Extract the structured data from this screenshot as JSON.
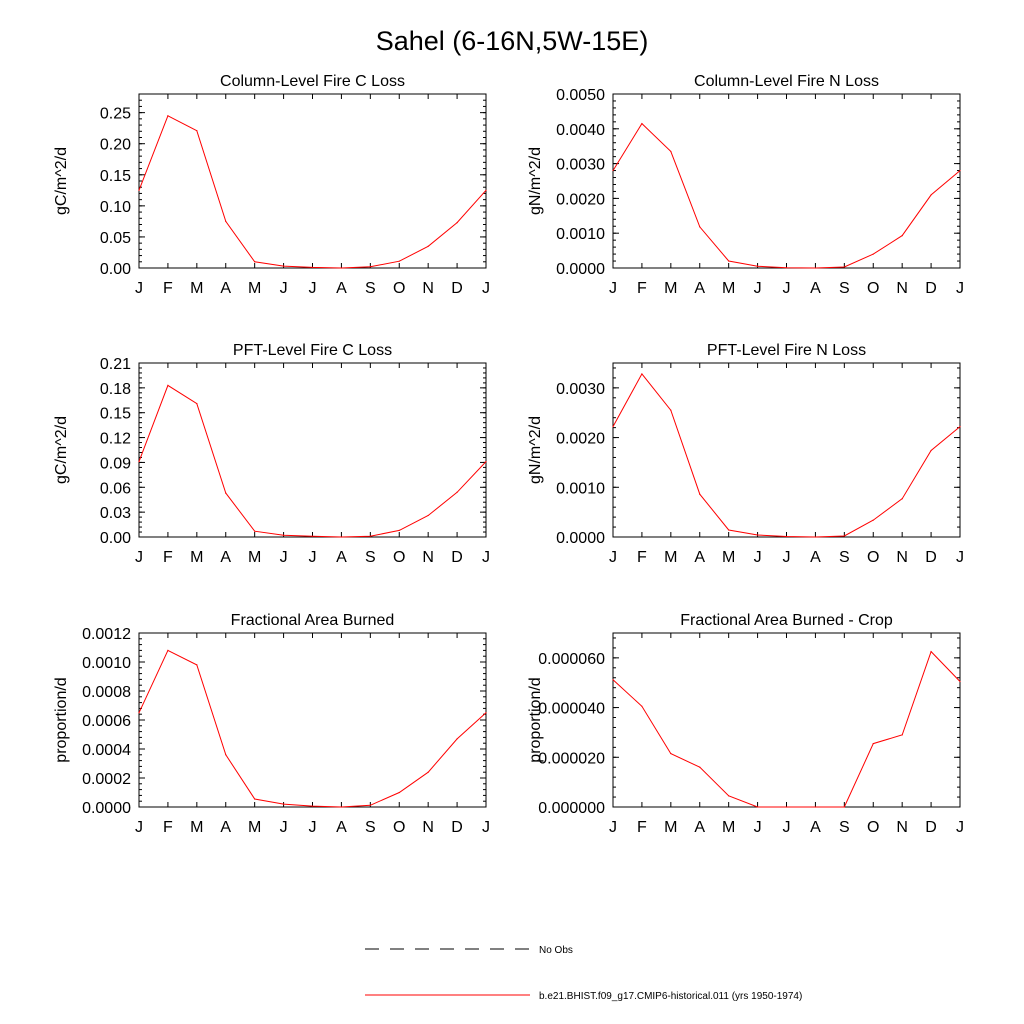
{
  "figure": {
    "title": "Sahel (6-16N,5W-15E)",
    "line_color": "#ff0000",
    "axis_color": "#000000"
  },
  "legend": {
    "entries": [
      {
        "label": "No Obs",
        "style": "dashed",
        "color": "#000000"
      },
      {
        "label": "b.e21.BHIST.f09_g17.CMIP6-historical.011 (yrs 1950-1974)",
        "style": "solid",
        "color": "#ff0000"
      }
    ]
  },
  "chart_data": [
    {
      "type": "line",
      "title": "Column-Level Fire C Loss",
      "ylabel": "gC/m^2/d",
      "xlabel": "",
      "categories": [
        "J",
        "F",
        "M",
        "A",
        "M",
        "J",
        "J",
        "A",
        "S",
        "O",
        "N",
        "D",
        "J"
      ],
      "ylim": [
        0,
        0.28
      ],
      "yticks": [
        "0.00",
        "0.05",
        "0.10",
        "0.15",
        "0.20",
        "0.25"
      ],
      "series": [
        {
          "values": [
            0.125,
            0.245,
            0.221,
            0.075,
            0.01,
            0.003,
            0.001,
            0.0,
            0.002,
            0.011,
            0.035,
            0.073,
            0.125
          ]
        }
      ]
    },
    {
      "type": "line",
      "title": "Column-Level Fire N Loss",
      "ylabel": "gN/m^2/d",
      "xlabel": "",
      "categories": [
        "J",
        "F",
        "M",
        "A",
        "M",
        "J",
        "J",
        "A",
        "S",
        "O",
        "N",
        "D",
        "J"
      ],
      "ylim": [
        0,
        0.005
      ],
      "yticks": [
        "0.0000",
        "0.0010",
        "0.0020",
        "0.0030",
        "0.0040",
        "0.0050"
      ],
      "series": [
        {
          "values": [
            0.0028,
            0.00415,
            0.00335,
            0.00118,
            0.0002,
            5e-05,
            1e-05,
            0.0,
            3e-05,
            0.0004,
            0.00093,
            0.0021,
            0.0028
          ]
        }
      ]
    },
    {
      "type": "line",
      "title": "PFT-Level Fire C Loss",
      "ylabel": "gC/m^2/d",
      "xlabel": "",
      "categories": [
        "J",
        "F",
        "M",
        "A",
        "M",
        "J",
        "J",
        "A",
        "S",
        "O",
        "N",
        "D",
        "J"
      ],
      "ylim": [
        0,
        0.21
      ],
      "yticks": [
        "0.00",
        "0.03",
        "0.06",
        "0.09",
        "0.12",
        "0.15",
        "0.18",
        "0.21"
      ],
      "series": [
        {
          "values": [
            0.091,
            0.183,
            0.161,
            0.053,
            0.007,
            0.002,
            0.001,
            0.0,
            0.001,
            0.008,
            0.026,
            0.054,
            0.091
          ]
        }
      ]
    },
    {
      "type": "line",
      "title": "PFT-Level Fire N Loss",
      "ylabel": "gN/m^2/d",
      "xlabel": "",
      "categories": [
        "J",
        "F",
        "M",
        "A",
        "M",
        "J",
        "J",
        "A",
        "S",
        "O",
        "N",
        "D",
        "J"
      ],
      "ylim": [
        0,
        0.0035
      ],
      "yticks": [
        "0.0000",
        "0.0010",
        "0.0020",
        "0.0030"
      ],
      "series": [
        {
          "values": [
            0.00222,
            0.00328,
            0.00255,
            0.00086,
            0.00014,
            4e-05,
            1e-05,
            0.0,
            2e-05,
            0.00034,
            0.00077,
            0.00174,
            0.00222
          ]
        }
      ]
    },
    {
      "type": "line",
      "title": "Fractional Area Burned",
      "ylabel": "proportion/d",
      "xlabel": "",
      "categories": [
        "J",
        "F",
        "M",
        "A",
        "M",
        "J",
        "J",
        "A",
        "S",
        "O",
        "N",
        "D",
        "J"
      ],
      "ylim": [
        0,
        0.0012
      ],
      "yticks": [
        "0.0000",
        "0.0002",
        "0.0004",
        "0.0006",
        "0.0008",
        "0.0010",
        "0.0012"
      ],
      "series": [
        {
          "values": [
            0.00065,
            0.00108,
            0.00098,
            0.00036,
            5.5e-05,
            2e-05,
            6e-06,
            0.0,
            1.2e-05,
            0.0001,
            0.00024,
            0.00047,
            0.00065
          ]
        }
      ]
    },
    {
      "type": "line",
      "title": "Fractional Area Burned - Crop",
      "ylabel": "proportion/d",
      "xlabel": "",
      "categories": [
        "J",
        "F",
        "M",
        "A",
        "M",
        "J",
        "J",
        "A",
        "S",
        "O",
        "N",
        "D",
        "J"
      ],
      "ylim": [
        0,
        7e-05
      ],
      "yticks": [
        "0.000000",
        "0.000020",
        "0.000040",
        "0.000060"
      ],
      "series": [
        {
          "values": [
            5.12e-05,
            4.05e-05,
            2.15e-05,
            1.6e-05,
            4.5e-06,
            0.0,
            0.0,
            0.0,
            0.0,
            2.55e-05,
            2.9e-05,
            6.25e-05,
            5.05e-05
          ]
        }
      ]
    }
  ]
}
